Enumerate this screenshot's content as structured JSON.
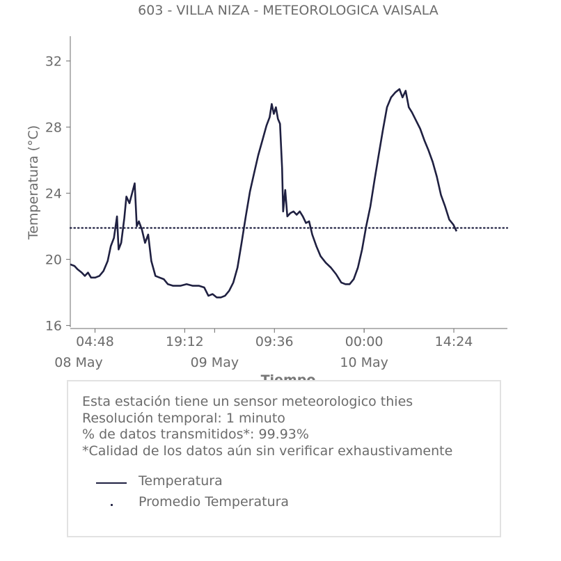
{
  "chart_data": {
    "type": "line",
    "title": "603 - VILLA NIZA - METEOROLOGICA VAISALA",
    "xlabel": "Tiempo",
    "ylabel": "Temperatura (°C)",
    "ylim": [
      15.9,
      33.5
    ],
    "xlim": [
      "2025-05-08 00:50",
      "2025-05-10 23:00"
    ],
    "y_ticks": [
      16,
      20,
      24,
      28,
      32
    ],
    "x_ticks": [
      {
        "time": "2025-05-08 04:48",
        "label": "04:48"
      },
      {
        "time": "2025-05-08 19:12",
        "label": "19:12"
      },
      {
        "time": "2025-05-09 09:36",
        "label": "09:36"
      },
      {
        "time": "2025-05-10 00:00",
        "label": "00:00"
      },
      {
        "time": "2025-05-10 14:24",
        "label": "14:24"
      }
    ],
    "date_ticks": [
      {
        "time": "2025-05-08 00:00",
        "label": "08 May"
      },
      {
        "time": "2025-05-09 00:00",
        "label": "09 May"
      },
      {
        "time": "2025-05-10 00:00",
        "label": "10 May"
      }
    ],
    "grid": false,
    "series": [
      {
        "name": "Temperatura",
        "color": "#1f2041",
        "style": "solid",
        "points": [
          [
            "2025-05-08 00:50",
            19.7
          ],
          [
            "2025-05-08 01:30",
            19.6
          ],
          [
            "2025-05-08 02:00",
            19.4
          ],
          [
            "2025-05-08 02:40",
            19.2
          ],
          [
            "2025-05-08 03:10",
            19.0
          ],
          [
            "2025-05-08 03:40",
            19.2
          ],
          [
            "2025-05-08 04:10",
            18.9
          ],
          [
            "2025-05-08 04:50",
            18.9
          ],
          [
            "2025-05-08 05:30",
            19.0
          ],
          [
            "2025-05-08 06:10",
            19.3
          ],
          [
            "2025-05-08 06:50",
            19.9
          ],
          [
            "2025-05-08 07:20",
            20.8
          ],
          [
            "2025-05-08 07:50",
            21.3
          ],
          [
            "2025-05-08 08:20",
            22.6
          ],
          [
            "2025-05-08 08:35",
            20.6
          ],
          [
            "2025-05-08 09:00",
            21.0
          ],
          [
            "2025-05-08 09:30",
            22.5
          ],
          [
            "2025-05-08 09:50",
            23.8
          ],
          [
            "2025-05-08 10:20",
            23.4
          ],
          [
            "2025-05-08 10:45",
            24.0
          ],
          [
            "2025-05-08 11:10",
            24.6
          ],
          [
            "2025-05-08 11:30",
            22.0
          ],
          [
            "2025-05-08 11:50",
            22.3
          ],
          [
            "2025-05-08 12:20",
            21.8
          ],
          [
            "2025-05-08 12:50",
            21.0
          ],
          [
            "2025-05-08 13:20",
            21.5
          ],
          [
            "2025-05-08 13:50",
            19.9
          ],
          [
            "2025-05-08 14:30",
            19.0
          ],
          [
            "2025-05-08 15:10",
            18.9
          ],
          [
            "2025-05-08 15:50",
            18.8
          ],
          [
            "2025-05-08 16:30",
            18.5
          ],
          [
            "2025-05-08 17:20",
            18.4
          ],
          [
            "2025-05-08 18:30",
            18.4
          ],
          [
            "2025-05-08 19:30",
            18.5
          ],
          [
            "2025-05-08 20:30",
            18.4
          ],
          [
            "2025-05-08 21:30",
            18.4
          ],
          [
            "2025-05-08 22:20",
            18.3
          ],
          [
            "2025-05-08 23:00",
            17.8
          ],
          [
            "2025-05-08 23:40",
            17.9
          ],
          [
            "2025-05-09 00:20",
            17.7
          ],
          [
            "2025-05-09 01:00",
            17.7
          ],
          [
            "2025-05-09 01:40",
            17.8
          ],
          [
            "2025-05-09 02:20",
            18.1
          ],
          [
            "2025-05-09 03:00",
            18.6
          ],
          [
            "2025-05-09 03:40",
            19.5
          ],
          [
            "2025-05-09 04:20",
            21.0
          ],
          [
            "2025-05-09 05:00",
            22.6
          ],
          [
            "2025-05-09 05:40",
            24.1
          ],
          [
            "2025-05-09 06:20",
            25.2
          ],
          [
            "2025-05-09 07:00",
            26.3
          ],
          [
            "2025-05-09 07:40",
            27.2
          ],
          [
            "2025-05-09 08:20",
            28.1
          ],
          [
            "2025-05-09 08:50",
            28.6
          ],
          [
            "2025-05-09 09:10",
            29.4
          ],
          [
            "2025-05-09 09:30",
            28.8
          ],
          [
            "2025-05-09 09:50",
            29.2
          ],
          [
            "2025-05-09 10:10",
            28.5
          ],
          [
            "2025-05-09 10:30",
            28.2
          ],
          [
            "2025-05-09 10:50",
            25.5
          ],
          [
            "2025-05-09 11:00",
            22.9
          ],
          [
            "2025-05-09 11:20",
            24.2
          ],
          [
            "2025-05-09 11:40",
            22.6
          ],
          [
            "2025-05-09 12:10",
            22.8
          ],
          [
            "2025-05-09 12:40",
            22.9
          ],
          [
            "2025-05-09 13:10",
            22.7
          ],
          [
            "2025-05-09 13:40",
            22.9
          ],
          [
            "2025-05-09 14:10",
            22.6
          ],
          [
            "2025-05-09 14:40",
            22.2
          ],
          [
            "2025-05-09 15:10",
            22.3
          ],
          [
            "2025-05-09 15:40",
            21.5
          ],
          [
            "2025-05-09 16:20",
            20.8
          ],
          [
            "2025-05-09 17:00",
            20.2
          ],
          [
            "2025-05-09 17:50",
            19.8
          ],
          [
            "2025-05-09 18:40",
            19.5
          ],
          [
            "2025-05-09 19:30",
            19.1
          ],
          [
            "2025-05-09 20:20",
            18.6
          ],
          [
            "2025-05-09 21:00",
            18.5
          ],
          [
            "2025-05-09 21:40",
            18.5
          ],
          [
            "2025-05-09 22:20",
            18.8
          ],
          [
            "2025-05-09 23:00",
            19.5
          ],
          [
            "2025-05-09 23:40",
            20.6
          ],
          [
            "2025-05-10 00:20",
            22.0
          ],
          [
            "2025-05-10 01:00",
            23.2
          ],
          [
            "2025-05-10 01:40",
            24.8
          ],
          [
            "2025-05-10 02:20",
            26.3
          ],
          [
            "2025-05-10 03:00",
            27.8
          ],
          [
            "2025-05-10 03:40",
            29.2
          ],
          [
            "2025-05-10 04:20",
            29.8
          ],
          [
            "2025-05-10 05:00",
            30.1
          ],
          [
            "2025-05-10 05:40",
            30.3
          ],
          [
            "2025-05-10 06:10",
            29.8
          ],
          [
            "2025-05-10 06:40",
            30.2
          ],
          [
            "2025-05-10 07:10",
            29.2
          ],
          [
            "2025-05-10 07:40",
            28.9
          ],
          [
            "2025-05-10 08:20",
            28.4
          ],
          [
            "2025-05-10 09:00",
            27.9
          ],
          [
            "2025-05-10 09:40",
            27.2
          ],
          [
            "2025-05-10 10:20",
            26.6
          ],
          [
            "2025-05-10 11:00",
            25.9
          ],
          [
            "2025-05-10 11:40",
            25.0
          ],
          [
            "2025-05-10 12:20",
            23.9
          ],
          [
            "2025-05-10 13:00",
            23.2
          ],
          [
            "2025-05-10 13:40",
            22.4
          ],
          [
            "2025-05-10 14:20",
            22.1
          ],
          [
            "2025-05-10 14:50",
            21.7
          ]
        ]
      },
      {
        "name": "Promedio Temperatura",
        "color": "#1f2041",
        "style": "dotted",
        "value": 21.9
      }
    ]
  },
  "info": {
    "lines": [
      "Esta estación tiene un sensor meteorologico thies",
      "Resolución temporal: 1 minuto",
      "% de datos transmitidos*: 99.93%",
      "*Calidad de los datos aún sin verificar exhaustivamente"
    ]
  },
  "legend": {
    "items": [
      {
        "label": "Temperatura",
        "marker": "line"
      },
      {
        "label": "Promedio Temperatura",
        "marker": "dot"
      }
    ]
  }
}
